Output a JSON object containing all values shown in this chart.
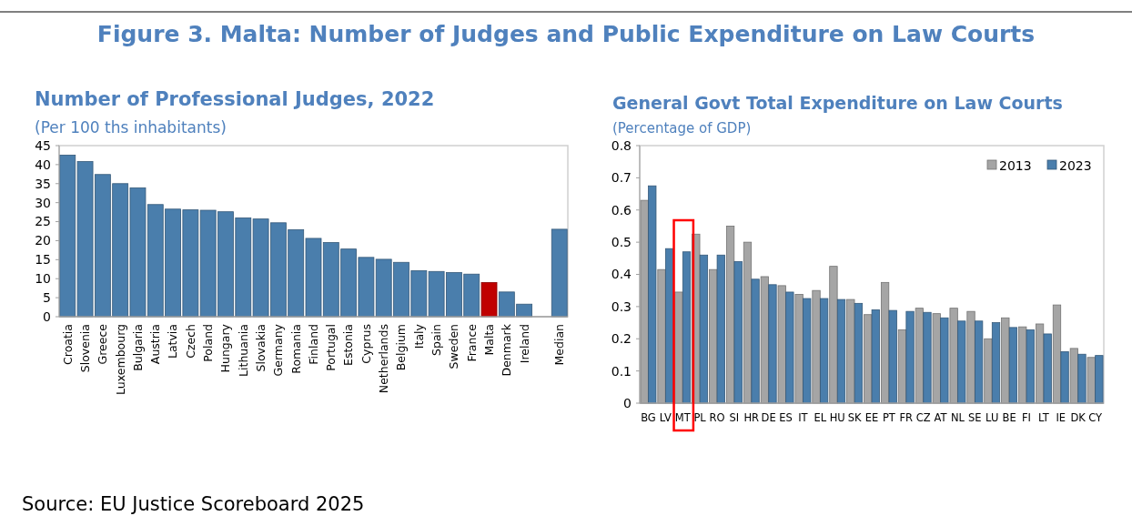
{
  "chart_data": [
    {
      "type": "other",
      "title": "Figure 3. Malta: Number of Judges and Public Expenditure on Law Courts",
      "annotations": [
        "Source: EU Justice Scoreboard 2025"
      ]
    },
    {
      "type": "bar",
      "title": "Number of Professional Judges, 2022",
      "subtitle": "(Per 100 ths inhabitants)",
      "categories": [
        "Croatia",
        "Slovenia",
        "Greece",
        "Luxembourg",
        "Bulgaria",
        "Austria",
        "Latvia",
        "Czech",
        "Poland",
        "Hungary",
        "Lithuania",
        "Slovakia",
        "Germany",
        "Romania",
        "Finland",
        "Portugal",
        "Estonia",
        "Cyprus",
        "Netherlands",
        "Belgium",
        "Italy",
        "Spain",
        "Sweden",
        "France",
        "Malta",
        "Denmark",
        "Ireland",
        null,
        "Median"
      ],
      "values": [
        42.5,
        40.8,
        37.4,
        35,
        33.9,
        29.5,
        28.3,
        28.1,
        28,
        27.6,
        26,
        25.7,
        24.7,
        22.9,
        20.6,
        19.5,
        17.8,
        15.6,
        15.1,
        14.3,
        12.1,
        11.9,
        11.6,
        11.2,
        9,
        6.5,
        3.3,
        null,
        23
      ],
      "colors": [
        "#4a7eac",
        "#4a7eac",
        "#4a7eac",
        "#4a7eac",
        "#4a7eac",
        "#4a7eac",
        "#4a7eac",
        "#4a7eac",
        "#4a7eac",
        "#4a7eac",
        "#4a7eac",
        "#4a7eac",
        "#4a7eac",
        "#4a7eac",
        "#4a7eac",
        "#4a7eac",
        "#4a7eac",
        "#4a7eac",
        "#4a7eac",
        "#4a7eac",
        "#4a7eac",
        "#4a7eac",
        "#4a7eac",
        "#4a7eac",
        "#c00000",
        "#4a7eac",
        "#4a7eac",
        null,
        "#4a7eac"
      ],
      "ylim": [
        0,
        45
      ],
      "yticks": [
        0,
        5,
        10,
        15,
        20,
        25,
        30,
        35,
        40,
        45
      ],
      "grid": false,
      "legend": false
    },
    {
      "type": "bar",
      "title": "General Govt Total Expenditure on Law Courts",
      "subtitle": "(Percentage of GDP)",
      "categories": [
        "BG",
        "LV",
        "MT",
        "PL",
        "RO",
        "SI",
        "HR",
        "DE",
        "ES",
        "IT",
        "EL",
        "HU",
        "SK",
        "EE",
        "PT",
        "FR",
        "CZ",
        "AT",
        "NL",
        "SE",
        "LU",
        "BE",
        "FI",
        "LT",
        "IE",
        "DK",
        "CY"
      ],
      "series": [
        {
          "name": "2013",
          "color": "#a5a5a5",
          "values": [
            0.63,
            0.415,
            0.345,
            0.525,
            0.415,
            0.55,
            0.5,
            0.393,
            0.365,
            0.338,
            0.35,
            0.425,
            0.322,
            0.275,
            0.375,
            0.228,
            0.295,
            0.278,
            0.295,
            0.285,
            0.2,
            0.265,
            0.237,
            0.246,
            0.305,
            0.17,
            0.142
          ]
        },
        {
          "name": "2023",
          "color": "#4a7eac",
          "values": [
            0.675,
            0.48,
            0.47,
            0.46,
            0.46,
            0.44,
            0.385,
            0.368,
            0.345,
            0.325,
            0.325,
            0.322,
            0.31,
            0.29,
            0.288,
            0.285,
            0.282,
            0.265,
            0.255,
            0.255,
            0.25,
            0.235,
            0.228,
            0.215,
            0.16,
            0.152,
            0.148
          ]
        }
      ],
      "ylim": [
        0,
        0.8
      ],
      "yticks": [
        0,
        0.1,
        0.2,
        0.3,
        0.4,
        0.5,
        0.6,
        0.7,
        0.8
      ],
      "grid": false,
      "legend": "top right"
    }
  ]
}
